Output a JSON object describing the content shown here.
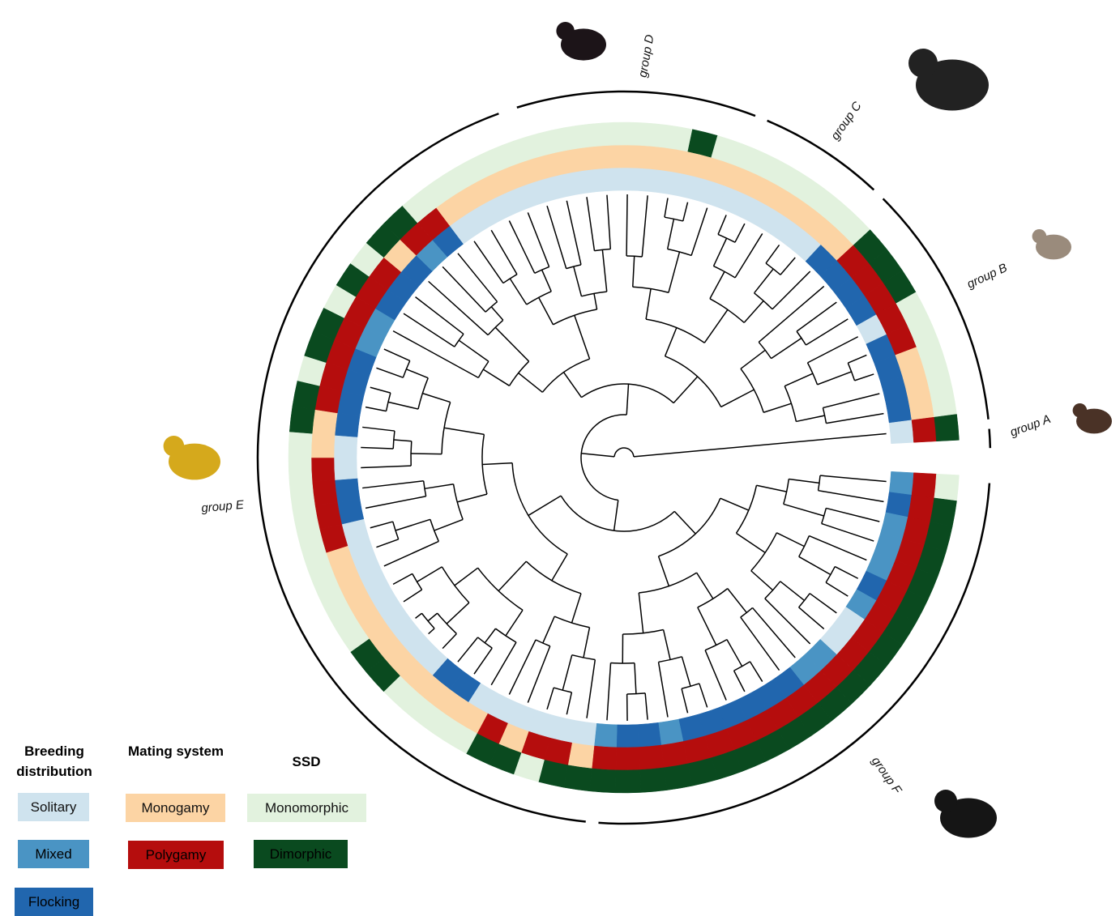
{
  "groups": [
    "group A",
    "group B",
    "group C",
    "group D",
    "group E",
    "group F"
  ],
  "legend": [
    {
      "title": "Breeding distribution",
      "items": [
        {
          "label": "Solitary",
          "color": "#cfe3ee"
        },
        {
          "label": "Mixed",
          "color": "#4a94c4"
        },
        {
          "label": "Flocking",
          "color": "#2166ae"
        }
      ]
    },
    {
      "title": "Mating system",
      "items": [
        {
          "label": "Monogamy",
          "color": "#fcd4a4"
        },
        {
          "label": "Polygamy",
          "color": "#b50d0d"
        }
      ]
    },
    {
      "title": "SSD",
      "items": [
        {
          "label": "Monomorphic",
          "color": "#e2f2de"
        },
        {
          "label": "Dimorphic",
          "color": "#0a4a1f"
        }
      ]
    }
  ]
}
